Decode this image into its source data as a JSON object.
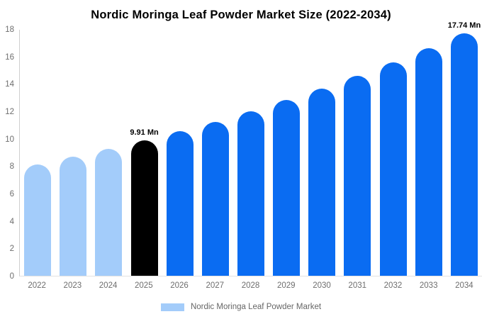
{
  "chart_data": {
    "type": "bar",
    "title": "Nordic Moringa Leaf Powder Market Size (2022-2034)",
    "xlabel": "",
    "ylabel": "",
    "ylim": [
      0,
      18
    ],
    "yticks": [
      0,
      2,
      4,
      6,
      8,
      10,
      12,
      14,
      16,
      18
    ],
    "grid": false,
    "categories": [
      "2022",
      "2023",
      "2024",
      "2025",
      "2026",
      "2027",
      "2028",
      "2029",
      "2030",
      "2031",
      "2032",
      "2033",
      "2034"
    ],
    "values": [
      8.16,
      8.71,
      9.29,
      9.91,
      10.57,
      11.28,
      12.03,
      12.84,
      13.7,
      14.61,
      15.59,
      16.63,
      17.74
    ],
    "bar_colors": [
      "#a3ccfa",
      "#a3ccfa",
      "#a3ccfa",
      "#000000",
      "#0a6cf2",
      "#0a6cf2",
      "#0a6cf2",
      "#0a6cf2",
      "#0a6cf2",
      "#0a6cf2",
      "#0a6cf2",
      "#0a6cf2",
      "#0a6cf2"
    ],
    "point_labels": [
      "",
      "",
      "",
      "9.91 Mn",
      "",
      "",
      "",
      "",
      "",
      "",
      "",
      "",
      "17.74 Mn"
    ],
    "legend": {
      "position": "bottom",
      "label": "Nordic Moringa Leaf Powder Market",
      "swatch_color": "#a3ccfa"
    },
    "colors": {
      "historical_bar": "#a3ccfa",
      "base_year_bar": "#000000",
      "forecast_bar": "#0a6cf2",
      "axis_text": "#6e6e6e",
      "title_text": "#000000",
      "axis_line": "#cfcfcf",
      "baseline": "#e2e2e2"
    }
  }
}
